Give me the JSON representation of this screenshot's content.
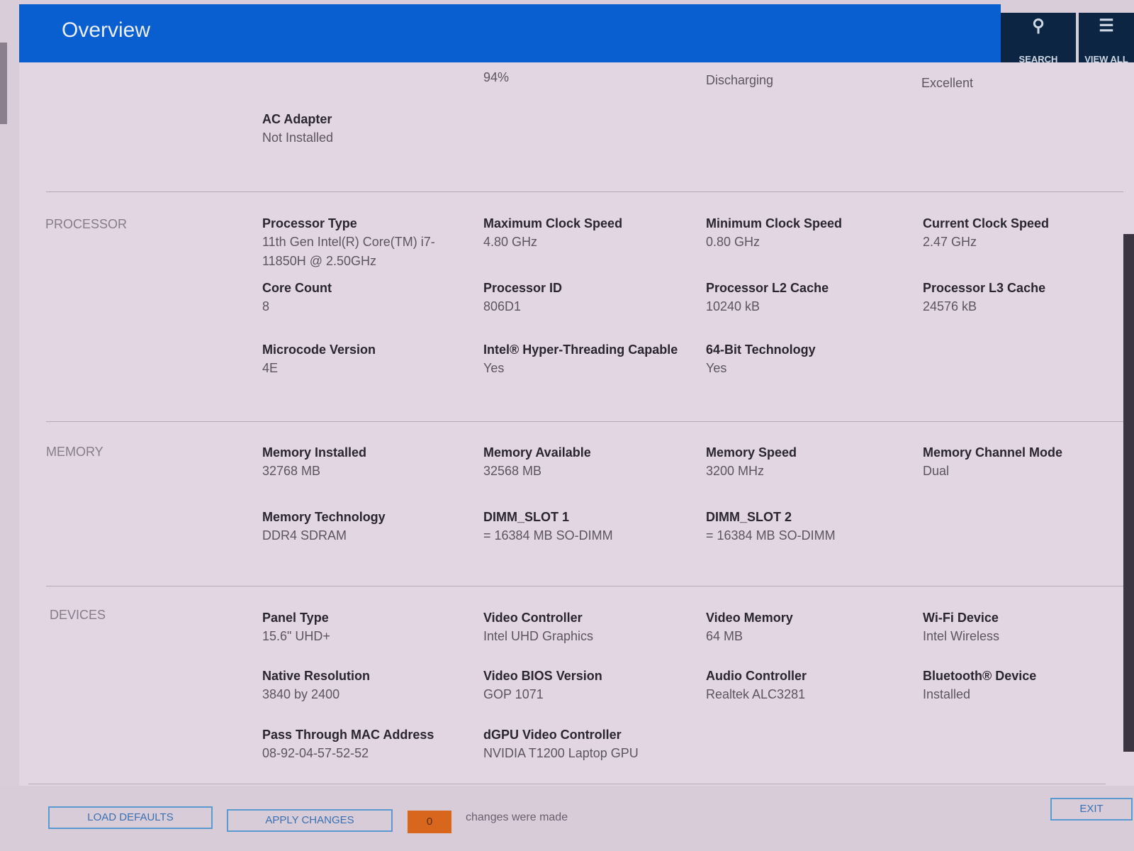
{
  "header": {
    "title": "Overview",
    "search_label": "SEARCH",
    "view_all_label": "VIEW ALL",
    "search_icon": "magnifier",
    "view_all_icon": "list-tree"
  },
  "battery": {
    "values": [
      "94%",
      "Discharging",
      "Excellent"
    ],
    "ac_adapter": {
      "label": "AC Adapter",
      "value": "Not Installed"
    }
  },
  "processor": {
    "label": "PROCESSOR",
    "fields": [
      {
        "k": "Processor Type",
        "v": "11th Gen Intel(R) Core(TM) i7-11850H @ 2.50GHz"
      },
      {
        "k": "Maximum Clock Speed",
        "v": "4.80 GHz"
      },
      {
        "k": "Minimum Clock Speed",
        "v": "0.80 GHz"
      },
      {
        "k": "Current Clock Speed",
        "v": "2.47 GHz"
      },
      {
        "k": "Core Count",
        "v": "8"
      },
      {
        "k": "Processor ID",
        "v": "806D1"
      },
      {
        "k": "Processor L2 Cache",
        "v": "10240 kB"
      },
      {
        "k": "Processor L3 Cache",
        "v": "24576 kB"
      },
      {
        "k": "Microcode Version",
        "v": "4E"
      },
      {
        "k": "Intel® Hyper-Threading Capable",
        "v": "Yes"
      },
      {
        "k": "64-Bit Technology",
        "v": "Yes"
      }
    ]
  },
  "memory": {
    "label": "MEMORY",
    "fields": [
      {
        "k": "Memory Installed",
        "v": "32768 MB"
      },
      {
        "k": "Memory Available",
        "v": "32568 MB"
      },
      {
        "k": "Memory Speed",
        "v": "3200 MHz"
      },
      {
        "k": "Memory Channel Mode",
        "v": "Dual"
      },
      {
        "k": "Memory Technology",
        "v": "DDR4 SDRAM"
      },
      {
        "k": "DIMM_SLOT 1",
        "v": "= 16384 MB SO-DIMM"
      },
      {
        "k": "DIMM_SLOT 2",
        "v": "= 16384 MB SO-DIMM"
      }
    ]
  },
  "devices": {
    "label": "DEVICES",
    "fields": [
      {
        "k": "Panel Type",
        "v": "15.6\" UHD+"
      },
      {
        "k": "Video Controller",
        "v": "Intel UHD Graphics"
      },
      {
        "k": "Video Memory",
        "v": "64 MB"
      },
      {
        "k": "Wi-Fi Device",
        "v": "Intel Wireless"
      },
      {
        "k": "Native Resolution",
        "v": "3840 by 2400"
      },
      {
        "k": "Video BIOS Version",
        "v": "GOP 1071"
      },
      {
        "k": "Audio Controller",
        "v": "Realtek ALC3281"
      },
      {
        "k": "Bluetooth® Device",
        "v": "Installed"
      },
      {
        "k": "Pass Through MAC Address",
        "v": "08-92-04-57-52-52"
      },
      {
        "k": "dGPU Video Controller",
        "v": "NVIDIA T1200 Laptop GPU"
      }
    ]
  },
  "footer": {
    "load_defaults": "LOAD DEFAULTS",
    "apply_changes": "APPLY CHANGES",
    "changes_count": "0",
    "changes_text": "changes were made",
    "exit": "EXIT",
    "count_color": "#d8661c"
  }
}
